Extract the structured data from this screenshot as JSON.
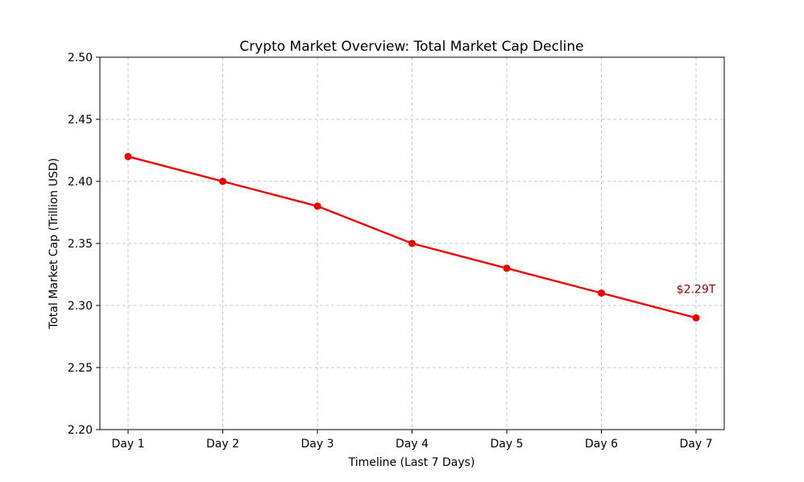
{
  "chart_data": {
    "type": "line",
    "title": "Crypto Market Overview: Total Market Cap Decline",
    "xlabel": "Timeline (Last 7 Days)",
    "ylabel": "Total Market Cap (Trillion USD)",
    "categories": [
      "Day 1",
      "Day 2",
      "Day 3",
      "Day 4",
      "Day 5",
      "Day 6",
      "Day 7"
    ],
    "series": [
      {
        "name": "Total Market Cap",
        "values": [
          2.42,
          2.4,
          2.38,
          2.35,
          2.33,
          2.31,
          2.29
        ],
        "color": "#ee0000"
      }
    ],
    "ylim": [
      2.2,
      2.5
    ],
    "yticks": [
      2.2,
      2.25,
      2.3,
      2.35,
      2.4,
      2.45,
      2.5
    ],
    "ytick_labels": [
      "2.20",
      "2.25",
      "2.30",
      "2.35",
      "2.40",
      "2.45",
      "2.50"
    ],
    "grid": true,
    "annotation": {
      "text": "$2.29T",
      "category": "Day 7",
      "value": 2.29,
      "color": "#8b0000"
    }
  }
}
